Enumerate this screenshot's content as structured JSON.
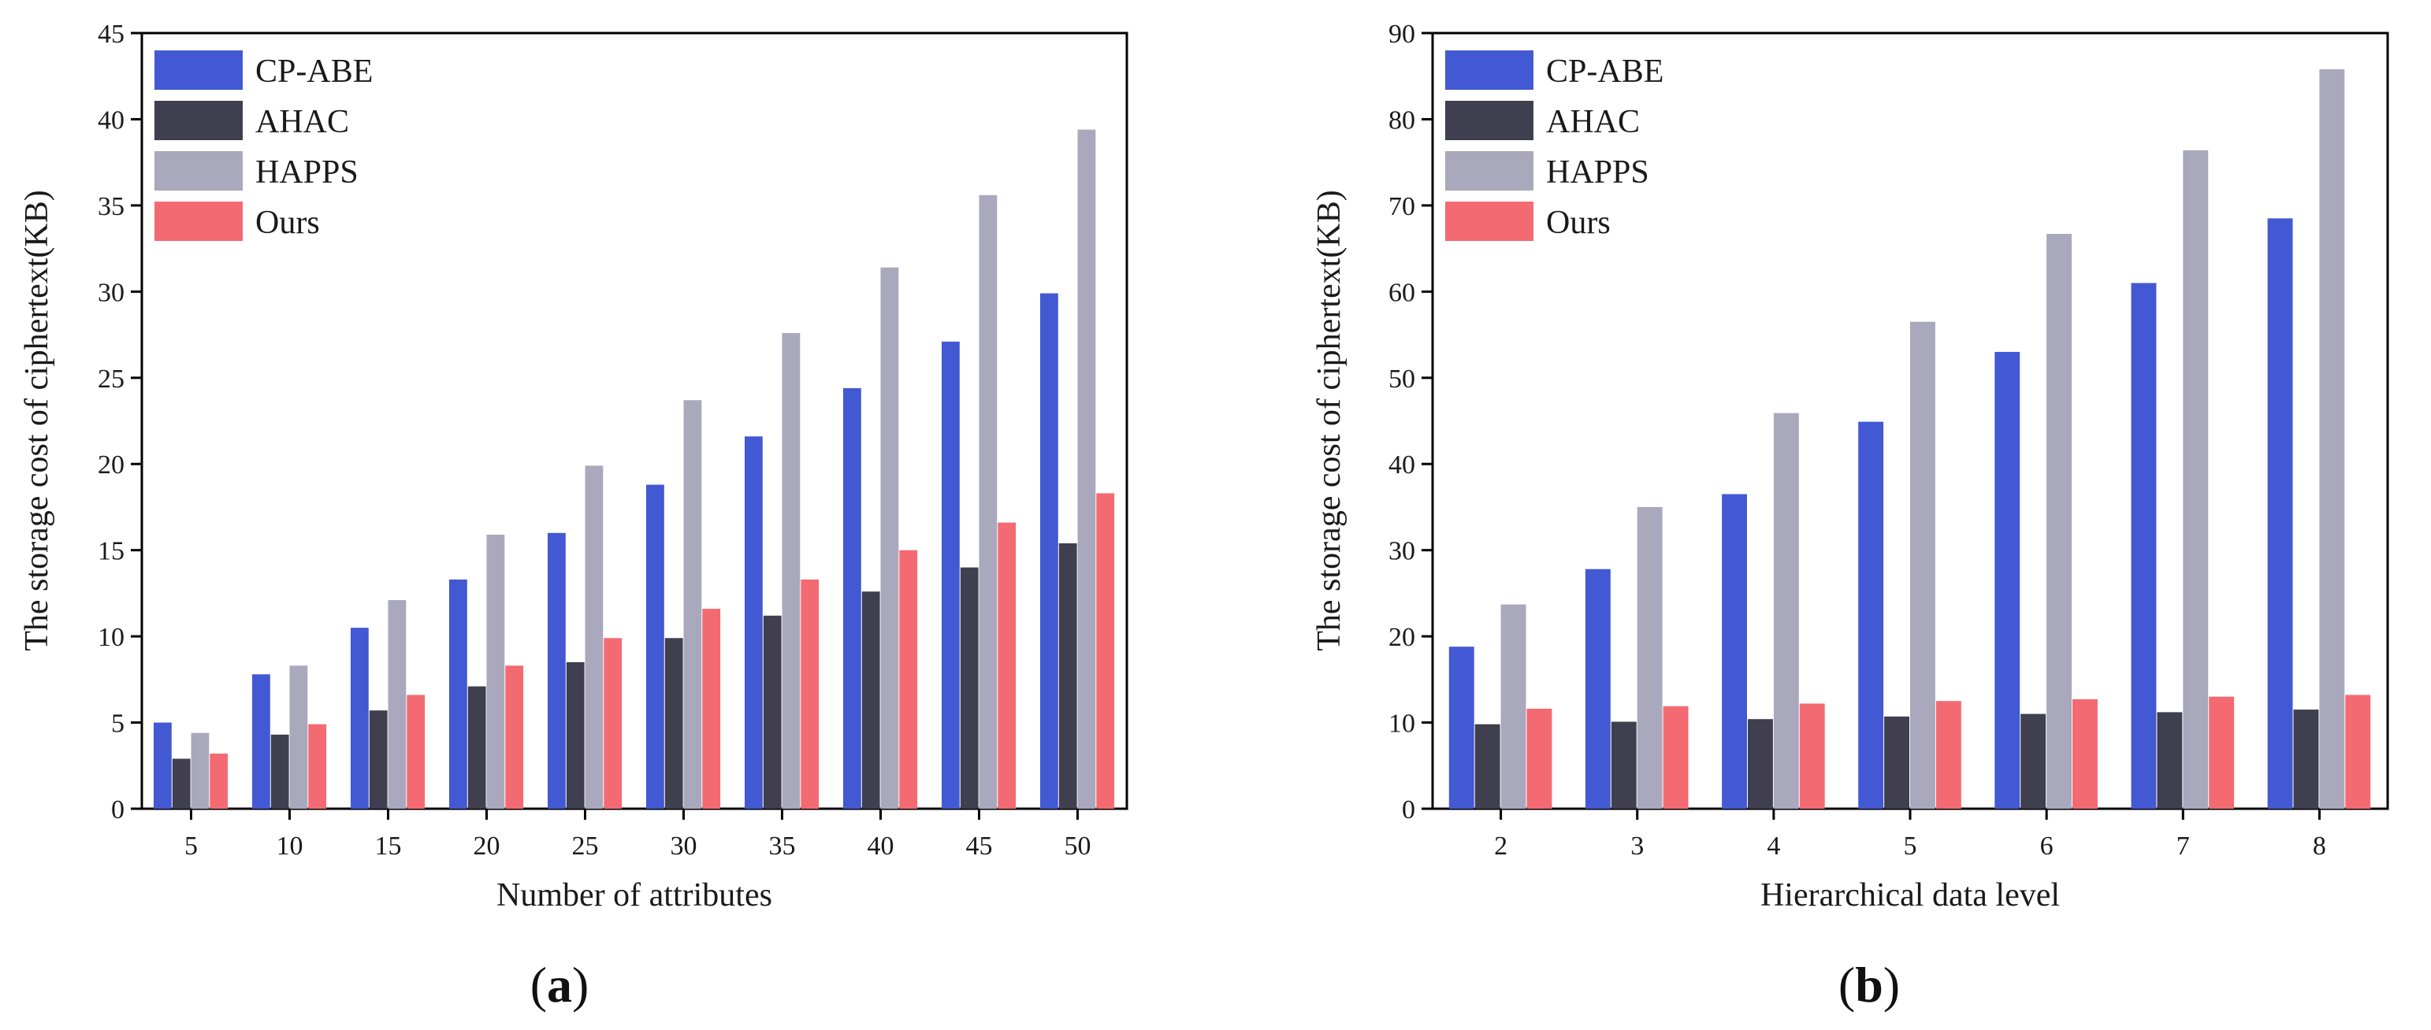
{
  "chart_data": [
    {
      "type": "bar",
      "panel_label": "a",
      "xlabel": "Number of attributes",
      "ylabel": "The storage cost of ciphertext(KB)",
      "categories": [
        "5",
        "10",
        "15",
        "20",
        "25",
        "30",
        "35",
        "40",
        "45",
        "50"
      ],
      "ylim": [
        0,
        45
      ],
      "yticks": [
        0,
        5,
        10,
        15,
        20,
        25,
        30,
        35,
        40,
        45
      ],
      "legend_position": "top-left",
      "series": [
        {
          "name": "CP-ABE",
          "color": "#4359d3",
          "values": [
            5.0,
            7.8,
            10.5,
            13.3,
            16.0,
            18.8,
            21.6,
            24.4,
            27.1,
            29.9
          ]
        },
        {
          "name": "AHAC",
          "color": "#3f3f4f",
          "values": [
            2.9,
            4.3,
            5.7,
            7.1,
            8.5,
            9.9,
            11.2,
            12.6,
            14.0,
            15.4
          ]
        },
        {
          "name": "HAPPS",
          "color": "#a9a8bc",
          "values": [
            4.4,
            8.3,
            12.1,
            15.9,
            19.9,
            23.7,
            27.6,
            31.4,
            35.6,
            39.4
          ]
        },
        {
          "name": "Ours",
          "color": "#f46a72",
          "values": [
            3.2,
            4.9,
            6.6,
            8.3,
            9.9,
            11.6,
            13.3,
            15.0,
            16.6,
            18.3
          ]
        }
      ]
    },
    {
      "type": "bar",
      "panel_label": "b",
      "xlabel": "Hierarchical data level",
      "ylabel": "The storage cost of ciphertext(KB)",
      "categories": [
        "2",
        "3",
        "4",
        "5",
        "6",
        "7",
        "8"
      ],
      "ylim": [
        0,
        90
      ],
      "yticks": [
        0,
        10,
        20,
        30,
        40,
        50,
        60,
        70,
        80,
        90
      ],
      "legend_position": "top-left",
      "series": [
        {
          "name": "CP-ABE",
          "color": "#4359d3",
          "values": [
            18.8,
            27.8,
            36.5,
            44.9,
            53.0,
            61.0,
            68.5
          ]
        },
        {
          "name": "AHAC",
          "color": "#3f3f4f",
          "values": [
            9.8,
            10.1,
            10.4,
            10.7,
            11.0,
            11.2,
            11.5
          ]
        },
        {
          "name": "HAPPS",
          "color": "#a9a8bc",
          "values": [
            23.7,
            35.0,
            45.9,
            56.5,
            66.7,
            76.4,
            85.8
          ]
        },
        {
          "name": "Ours",
          "color": "#f46a72",
          "values": [
            11.6,
            11.9,
            12.2,
            12.5,
            12.7,
            13.0,
            13.2
          ]
        }
      ]
    }
  ]
}
